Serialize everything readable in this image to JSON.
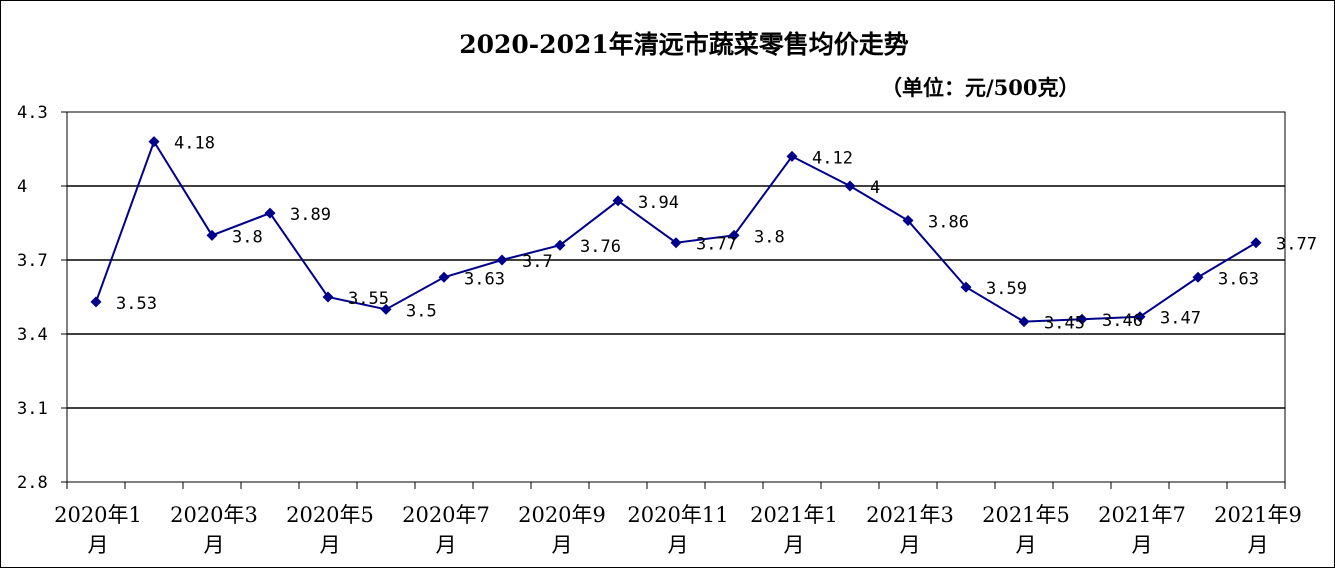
{
  "chart_data": {
    "type": "line",
    "title": "2020-2021年清远市蔬菜零售均价走势",
    "subtitle": "（单位：元/500克）",
    "xlabel": "",
    "ylabel": "",
    "ylim": [
      2.8,
      4.3
    ],
    "yticks": [
      "2.8",
      "3.1",
      "3.4",
      "3.7",
      "4",
      "4.3"
    ],
    "ytick_values": [
      2.8,
      3.1,
      3.4,
      3.7,
      4.0,
      4.3
    ],
    "x_tick_labels": [
      {
        "index": 0,
        "line1": "2020年1",
        "line2": "月"
      },
      {
        "index": 2,
        "line1": "2020年3",
        "line2": "月"
      },
      {
        "index": 4,
        "line1": "2020年5",
        "line2": "月"
      },
      {
        "index": 6,
        "line1": "2020年7",
        "line2": "月"
      },
      {
        "index": 8,
        "line1": "2020年9",
        "line2": "月"
      },
      {
        "index": 10,
        "line1": "2020年11",
        "line2": "月"
      },
      {
        "index": 12,
        "line1": "2021年1",
        "line2": "月"
      },
      {
        "index": 14,
        "line1": "2021年3",
        "line2": "月"
      },
      {
        "index": 16,
        "line1": "2021年5",
        "line2": "月"
      },
      {
        "index": 18,
        "line1": "2021年7",
        "line2": "月"
      },
      {
        "index": 20,
        "line1": "2021年9",
        "line2": "月"
      }
    ],
    "values": [
      3.53,
      4.18,
      3.8,
      3.89,
      3.55,
      3.5,
      3.63,
      3.7,
      3.76,
      3.94,
      3.77,
      3.8,
      4.12,
      4.0,
      3.86,
      3.59,
      3.45,
      3.46,
      3.47,
      3.63,
      3.77
    ],
    "data_labels": [
      "3.53",
      "4.18",
      "3.8",
      "3.89",
      "3.55",
      "3.5",
      "3.63",
      "3.7",
      "3.76",
      "3.94",
      "3.77",
      "3.8",
      "4.12",
      "4",
      "3.86",
      "3.59",
      "3.45",
      "3.46",
      "3.47",
      "3.63",
      "3.77"
    ],
    "grid": true,
    "legend": "none",
    "colors": {
      "line": "#00008B",
      "marker": "#00008B",
      "grid": "#000000"
    }
  }
}
